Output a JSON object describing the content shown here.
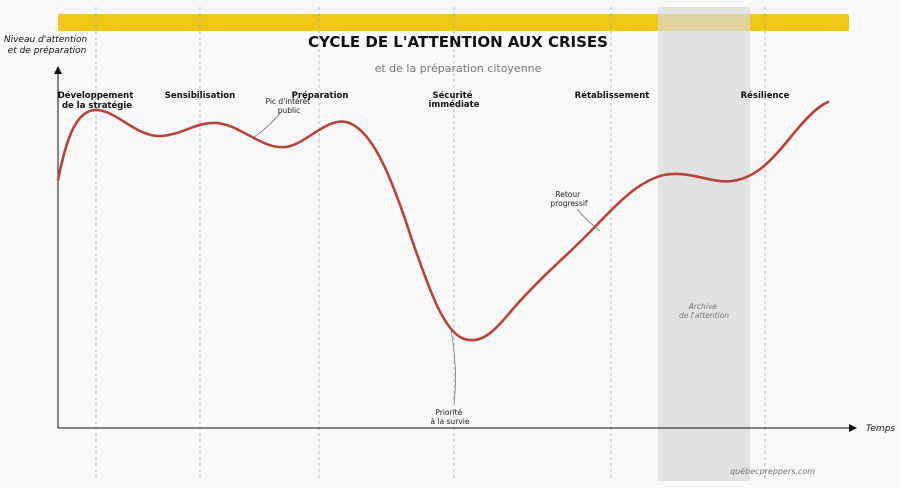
{
  "title": "CYCLE DE L'ATTENTION AUX CRISES",
  "subtitle": "et de la préparation citoyenne",
  "y_axis_label": [
    "Niveau d'attention",
    "et de préparation"
  ],
  "x_axis_label": "Temps",
  "phases": [
    {
      "lines": [
        "Développement",
        "de la stratégie"
      ]
    },
    {
      "lines": [
        "Sensibilisation"
      ]
    },
    {
      "lines": [
        "Préparation"
      ]
    },
    {
      "lines": [
        "Sécurité",
        "immédiate"
      ]
    },
    {
      "lines": [
        "Rétablissement"
      ]
    },
    {
      "lines": [
        "Résilience"
      ]
    }
  ],
  "annotations": [
    {
      "name": "annotation-pic-interet",
      "lines": [
        "Pic d'intérêt",
        "public"
      ]
    },
    {
      "name": "annotation-retour-progressif",
      "lines": [
        "Retour",
        "progressif"
      ]
    },
    {
      "name": "annotation-priorite-survie",
      "lines": [
        "Priorité",
        "à la survie"
      ]
    }
  ],
  "shaded_region_label": [
    "Archive",
    "de l'attention"
  ],
  "credit": "québecpreppers.com",
  "colors": {
    "banner": "#f2c618",
    "curve": "#b5443a",
    "shade": "#dcdcdc",
    "background": "#f8f8f8"
  }
}
